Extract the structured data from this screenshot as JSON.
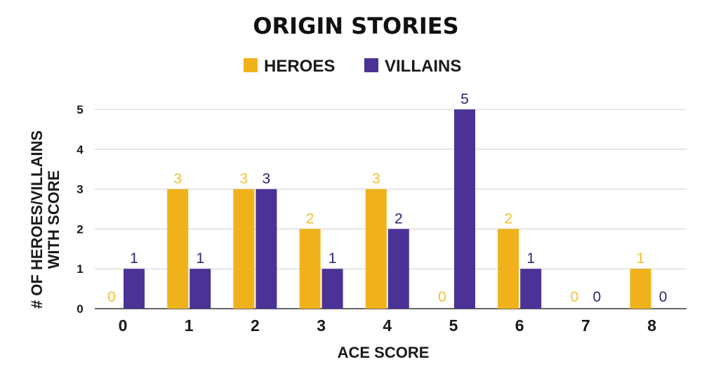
{
  "chart_data": {
    "type": "bar",
    "title": "ORIGIN STORIES",
    "xlabel": "ACE SCORE",
    "ylabel_lines": [
      "# OF HEROES/VILLAINS",
      "WITH SCORE"
    ],
    "categories": [
      "0",
      "1",
      "2",
      "3",
      "4",
      "5",
      "6",
      "7",
      "8"
    ],
    "yticks": [
      "0",
      "1",
      "2",
      "3",
      "4",
      "5"
    ],
    "ylim": [
      0,
      5
    ],
    "grid": true,
    "legend_position": "top-center",
    "series": [
      {
        "name": "HEROES",
        "color": "#f0b21a",
        "label_color": "#f2c230",
        "values": [
          0,
          3,
          3,
          2,
          3,
          0,
          2,
          0,
          1
        ]
      },
      {
        "name": "VILLAINS",
        "color": "#4b3296",
        "label_color": "#2f2670",
        "values": [
          1,
          1,
          3,
          1,
          2,
          5,
          1,
          0,
          0
        ]
      }
    ]
  }
}
